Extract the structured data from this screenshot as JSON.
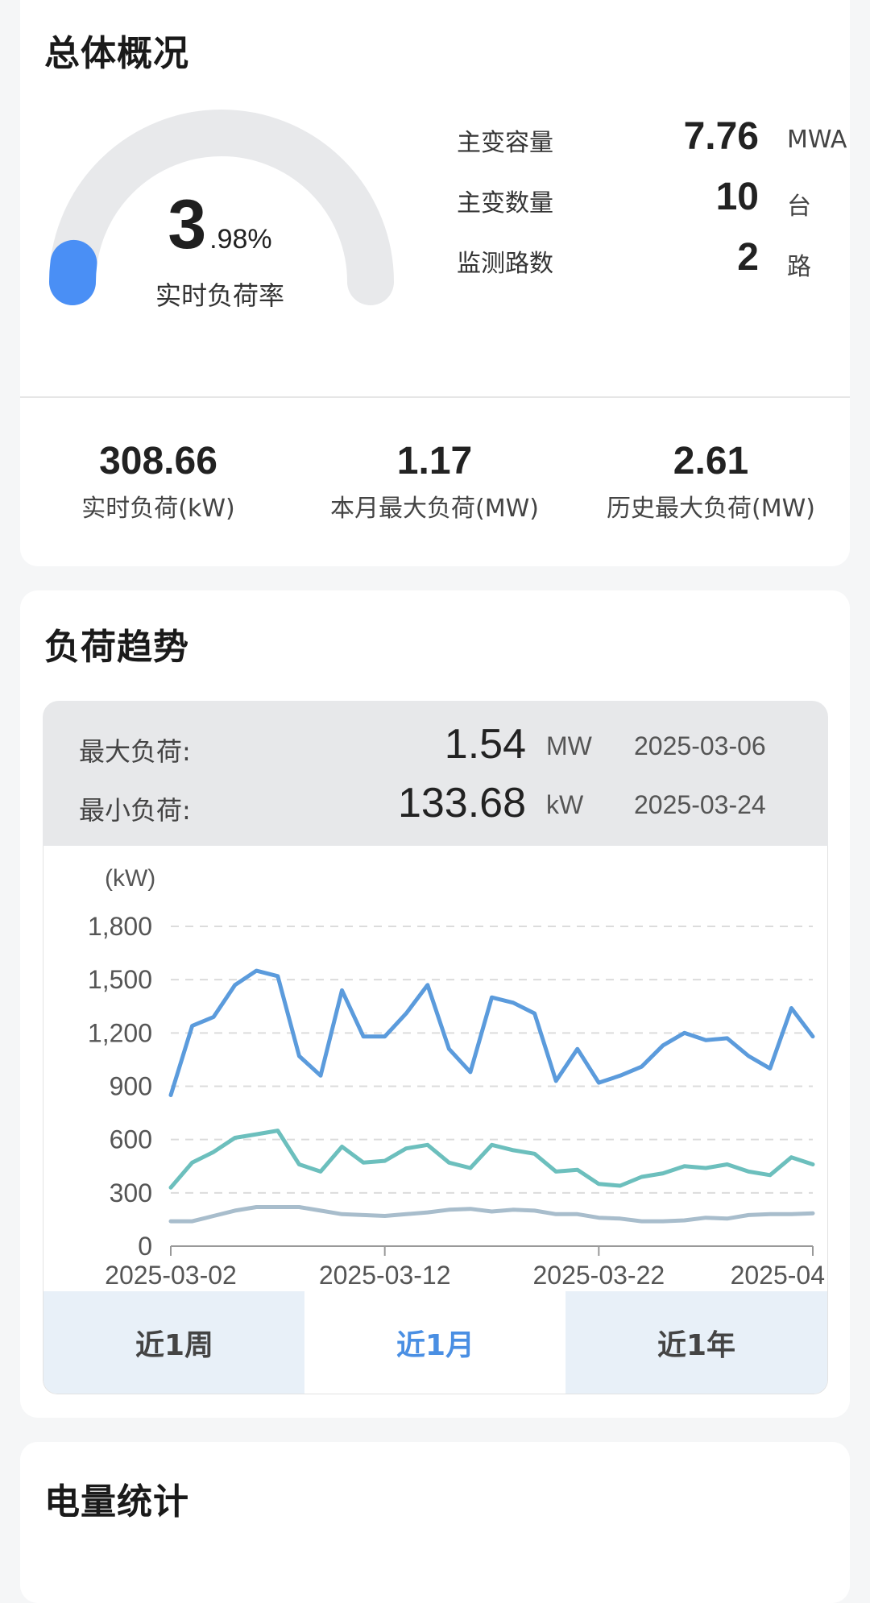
{
  "overview": {
    "title": "总体概况",
    "gauge": {
      "int": "3",
      "decimal": ".98%",
      "label": "实时负荷率",
      "fraction": 0.0398,
      "track_color": "#e8e9eb",
      "fill_color": "#4a8ff5"
    },
    "specs": [
      {
        "label": "主变容量",
        "value": "7.76",
        "unit": "MWA"
      },
      {
        "label": "主变数量",
        "value": "10",
        "unit": "台"
      },
      {
        "label": "监测路数",
        "value": "2",
        "unit": "路"
      }
    ],
    "stats": [
      {
        "value": "308.66",
        "label": "实时负荷(kW)"
      },
      {
        "value": "1.17",
        "label": "本月最大负荷(MW)"
      },
      {
        "value": "2.61",
        "label": "历史最大负荷(MW)"
      }
    ]
  },
  "trend": {
    "title": "负荷趋势",
    "summary": {
      "max": {
        "label": "最大负荷:",
        "value": "1.54",
        "unit": "MW",
        "date": "2025-03-06"
      },
      "min": {
        "label": "最小负荷:",
        "value": "133.68",
        "unit": "kW",
        "date": "2025-03-24"
      }
    },
    "tabs": [
      {
        "label": "近1周",
        "active": false
      },
      {
        "label": "近1月",
        "active": true
      },
      {
        "label": "近1年",
        "active": false
      }
    ]
  },
  "energy": {
    "title": "电量统计"
  },
  "chart_data": {
    "type": "line",
    "ylabel": "(kW)",
    "ylim": [
      0,
      1800
    ],
    "yticks": [
      "0",
      "300",
      "600",
      "900",
      "1,200",
      "1,500",
      "1,800"
    ],
    "xticks": [
      "2025-03-02",
      "2025-03-12",
      "2025-03-22",
      "2025-04"
    ],
    "grid": true,
    "series": [
      {
        "color": "#5b9bdc",
        "values": [
          850,
          1240,
          1290,
          1470,
          1550,
          1520,
          1070,
          960,
          1440,
          1180,
          1180,
          1310,
          1470,
          1110,
          980,
          1400,
          1370,
          1310,
          930,
          1110,
          920,
          960,
          1010,
          1130,
          1200,
          1160,
          1170,
          1070,
          1000,
          1340,
          1180
        ]
      },
      {
        "color": "#6cbfbd",
        "values": [
          330,
          470,
          530,
          610,
          630,
          650,
          460,
          420,
          560,
          470,
          480,
          550,
          570,
          470,
          440,
          570,
          540,
          520,
          420,
          430,
          350,
          340,
          390,
          410,
          450,
          440,
          460,
          420,
          400,
          500,
          460
        ]
      },
      {
        "color": "#a8bdcc",
        "values": [
          140,
          140,
          170,
          200,
          220,
          220,
          220,
          200,
          180,
          175,
          170,
          180,
          190,
          205,
          210,
          195,
          205,
          200,
          180,
          180,
          160,
          155,
          140,
          140,
          145,
          160,
          155,
          175,
          180,
          180,
          185
        ]
      }
    ]
  }
}
